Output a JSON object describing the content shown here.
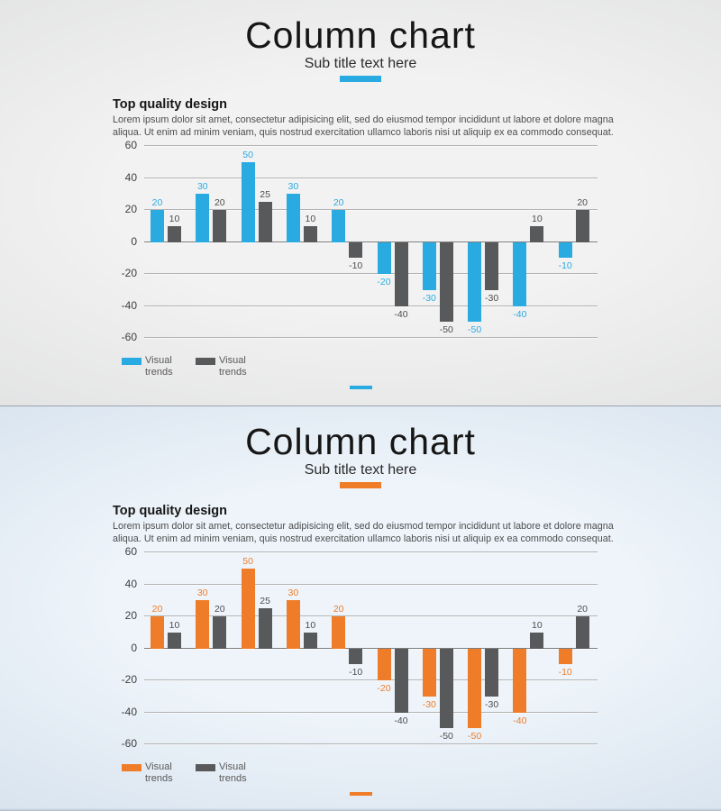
{
  "panels": [
    {
      "theme": "light-gray",
      "title": "Column chart",
      "subtitle": "Sub title text here",
      "accent_color": "#29abe2",
      "bg_inner": "#f2f2f2",
      "bg_outer": "#d8d9da",
      "section": {
        "heading": "Top quality design",
        "body": "Lorem ipsum dolor sit amet, consectetur adipisicing elit, sed do eiusmod tempor incididunt ut labore et dolore magna\naliqua. Ut enim ad minim veniam, quis nostrud exercitation ullamco laboris nisi ut aliquip ex ea commodo consequat."
      },
      "legend": [
        {
          "label": "Visual trends",
          "color": "#29abe2"
        },
        {
          "label": "Visual trends",
          "color": "#58595b"
        }
      ]
    },
    {
      "theme": "light-blue",
      "title": "Column chart",
      "subtitle": "Sub title text here",
      "accent_color": "#ef7c28",
      "bg_inner": "#eef4fa",
      "bg_outer": "#c8d7e6",
      "section": {
        "heading": "Top quality design",
        "body": "Lorem ipsum dolor sit amet, consectetur adipisicing elit, sed do eiusmod tempor incididunt ut labore et dolore magna\naliqua. Ut enim ad minim veniam, quis nostrud exercitation ullamco laboris nisi ut aliquip ex ea commodo consequat."
      },
      "legend": [
        {
          "label": "Visual trends",
          "color": "#ef7c28"
        },
        {
          "label": "Visual trends",
          "color": "#58595b"
        }
      ]
    }
  ],
  "chart_data": [
    {
      "type": "bar",
      "title": "Column chart",
      "subtitle": "Sub title text here",
      "series": [
        {
          "name": "Visual trends",
          "color": "#29abe2",
          "label_color": "#29abe2",
          "values": [
            20,
            30,
            50,
            30,
            20,
            -20,
            -30,
            -50,
            -40,
            -10
          ]
        },
        {
          "name": "Visual trends",
          "color": "#58595b",
          "label_color": "#4d4d4d",
          "values": [
            10,
            20,
            25,
            10,
            -10,
            -40,
            -50,
            -30,
            10,
            20
          ]
        }
      ],
      "ylim": [
        -60,
        60
      ],
      "yticks": [
        60,
        40,
        20,
        0,
        -20,
        -40,
        -60
      ],
      "grid": true,
      "data_labels": true,
      "legend_position": "bottom-left",
      "xlabel": "",
      "ylabel": ""
    },
    {
      "type": "bar",
      "title": "Column chart",
      "subtitle": "Sub title text here",
      "series": [
        {
          "name": "Visual trends",
          "color": "#ef7c28",
          "label_color": "#ef7c28",
          "values": [
            20,
            30,
            50,
            30,
            20,
            -20,
            -30,
            -50,
            -40,
            -10
          ]
        },
        {
          "name": "Visual trends",
          "color": "#58595b",
          "label_color": "#4d4d4d",
          "values": [
            10,
            20,
            25,
            10,
            -10,
            -40,
            -50,
            -30,
            10,
            20
          ]
        }
      ],
      "ylim": [
        -60,
        60
      ],
      "yticks": [
        60,
        40,
        20,
        0,
        -20,
        -40,
        -60
      ],
      "grid": true,
      "data_labels": true,
      "legend_position": "bottom-left",
      "xlabel": "",
      "ylabel": ""
    }
  ]
}
